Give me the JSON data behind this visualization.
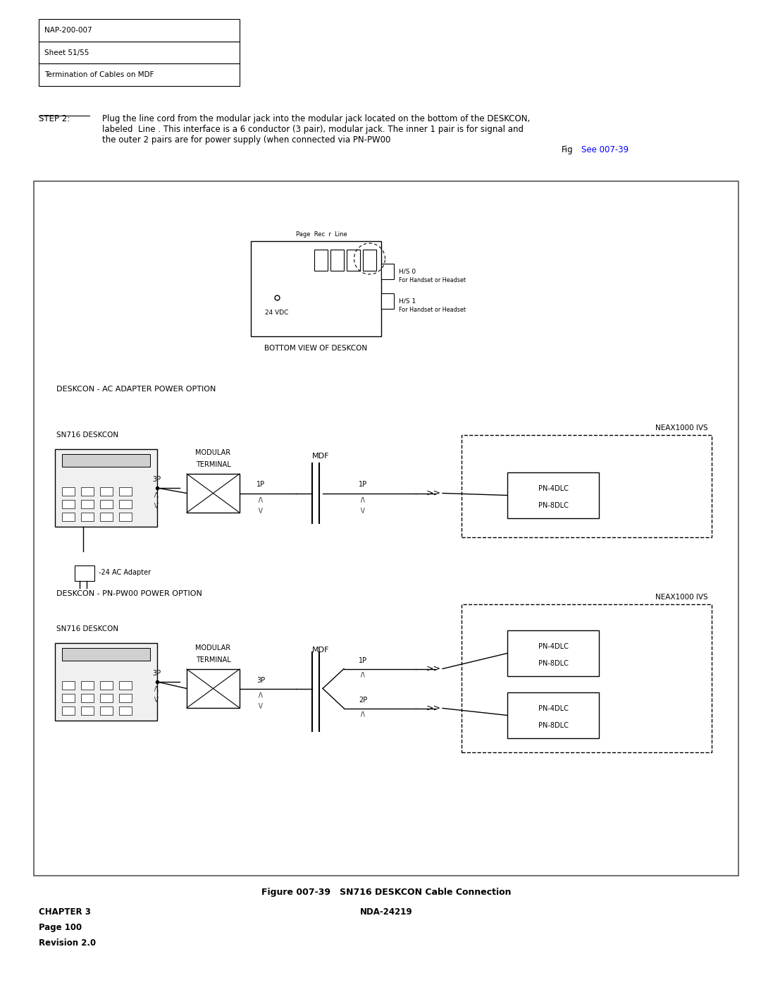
{
  "bg_color": "#ffffff",
  "page_width": 10.8,
  "page_height": 13.97,
  "table_rows": [
    "NAP-200-007",
    "Sheet 51/55",
    "Termination of Cables on MDF"
  ],
  "step2_see": "See 007-39",
  "fig_caption": "Figure 007-39   SN716 DESKCON Cable Connection",
  "bottom_labels": [
    "CHAPTER 3",
    "Page 100",
    "Revision 2.0"
  ],
  "center_label": "NDA-24219"
}
